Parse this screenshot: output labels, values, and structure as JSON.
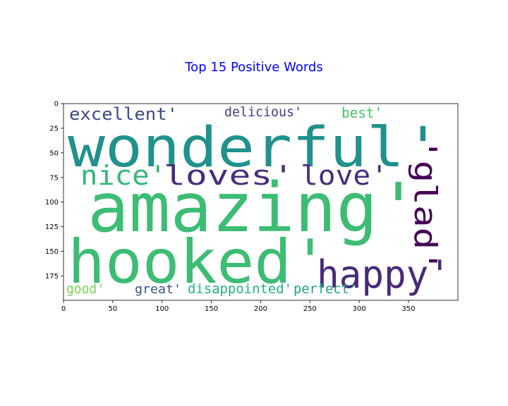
{
  "title": "Top 15 Positive Words",
  "x_axis": {
    "range": [
      0,
      400
    ],
    "ticks": [
      "0",
      "50",
      "100",
      "150",
      "200",
      "250",
      "300",
      "350"
    ]
  },
  "y_axis": {
    "range": [
      200,
      0
    ],
    "inverted": true,
    "ticks": [
      "0",
      "25",
      "50",
      "75",
      "100",
      "125",
      "150",
      "175"
    ]
  },
  "words": [
    {
      "text": "wonderful'",
      "color": "#21918c"
    },
    {
      "text": "amazing'",
      "color": "#3dbc74"
    },
    {
      "text": "hooked'",
      "color": "#3dbc74"
    },
    {
      "text": "happy'",
      "color": "#482979"
    },
    {
      "text": "loves'",
      "color": "#472d7b"
    },
    {
      "text": "love'",
      "color": "#472d7b"
    },
    {
      "text": "nice'",
      "color": "#35b779"
    },
    {
      "text": "'glad'",
      "color": "#440154"
    },
    {
      "text": "excellent'",
      "color": "#3e4a89"
    },
    {
      "text": "delicious'",
      "color": "#433e85"
    },
    {
      "text": "best'",
      "color": "#4ac16d"
    },
    {
      "text": "good'",
      "color": "#7ad151"
    },
    {
      "text": "great'",
      "color": "#3b528b"
    },
    {
      "text": "disappointed'",
      "color": "#28ae80"
    },
    {
      "text": "perfect'",
      "color": "#1fa187"
    }
  ]
}
